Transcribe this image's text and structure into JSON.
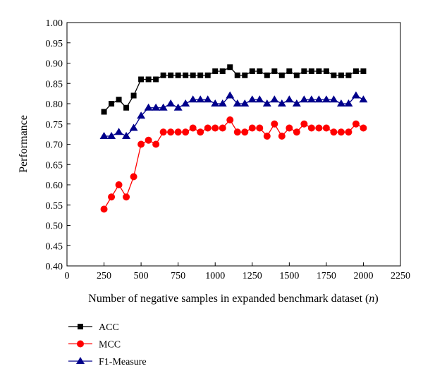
{
  "chart_data": {
    "type": "line",
    "title": "",
    "xlabel": "Number of negative samples in expanded benchmark dataset (",
    "xlabel_var": "n",
    "xlabel_end": ")",
    "ylabel": "Performance",
    "xlim": [
      0,
      2250
    ],
    "ylim": [
      0.4,
      1.0
    ],
    "xticks": [
      "0",
      "250",
      "500",
      "750",
      "1000",
      "1250",
      "1500",
      "1750",
      "2000",
      "2250"
    ],
    "yticks": [
      "0.40",
      "0.45",
      "0.50",
      "0.55",
      "0.60",
      "0.65",
      "0.70",
      "0.75",
      "0.80",
      "0.85",
      "0.90",
      "0.95",
      "1.00"
    ],
    "grid": false,
    "legend_placement": "bottom-left, below plot",
    "x": [
      250,
      300,
      350,
      400,
      450,
      500,
      550,
      600,
      650,
      700,
      750,
      800,
      850,
      900,
      950,
      1000,
      1050,
      1100,
      1150,
      1200,
      1250,
      1300,
      1350,
      1400,
      1450,
      1500,
      1550,
      1600,
      1650,
      1700,
      1750,
      1800,
      1850,
      1900,
      1950,
      2000
    ],
    "series": [
      {
        "name": "ACC",
        "color": "#000000",
        "marker": "square",
        "values": [
          0.78,
          0.8,
          0.81,
          0.79,
          0.82,
          0.86,
          0.86,
          0.86,
          0.87,
          0.87,
          0.87,
          0.87,
          0.87,
          0.87,
          0.87,
          0.88,
          0.88,
          0.89,
          0.87,
          0.87,
          0.88,
          0.88,
          0.87,
          0.88,
          0.87,
          0.88,
          0.87,
          0.88,
          0.88,
          0.88,
          0.88,
          0.87,
          0.87,
          0.87,
          0.88,
          0.88
        ]
      },
      {
        "name": "MCC",
        "color": "#ff0000",
        "marker": "circle",
        "values": [
          0.54,
          0.57,
          0.6,
          0.57,
          0.62,
          0.7,
          0.71,
          0.7,
          0.73,
          0.73,
          0.73,
          0.73,
          0.74,
          0.73,
          0.74,
          0.74,
          0.74,
          0.76,
          0.73,
          0.73,
          0.74,
          0.74,
          0.72,
          0.75,
          0.72,
          0.74,
          0.73,
          0.75,
          0.74,
          0.74,
          0.74,
          0.73,
          0.73,
          0.73,
          0.75,
          0.74
        ]
      },
      {
        "name": "F1-Measure",
        "color": "#00008b",
        "marker": "triangle",
        "values": [
          0.72,
          0.72,
          0.73,
          0.72,
          0.74,
          0.77,
          0.79,
          0.79,
          0.79,
          0.8,
          0.79,
          0.8,
          0.81,
          0.81,
          0.81,
          0.8,
          0.8,
          0.82,
          0.8,
          0.8,
          0.81,
          0.81,
          0.8,
          0.81,
          0.8,
          0.81,
          0.8,
          0.81,
          0.81,
          0.81,
          0.81,
          0.81,
          0.8,
          0.8,
          0.82,
          0.81
        ]
      }
    ]
  }
}
